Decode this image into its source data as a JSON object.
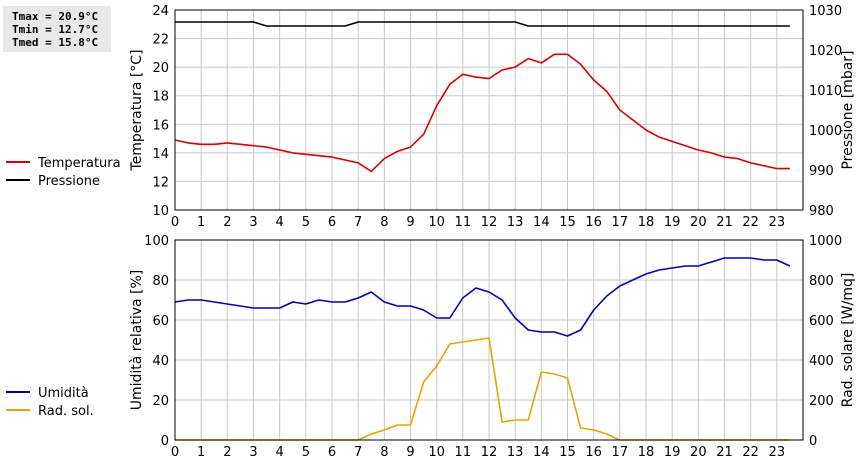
{
  "stats": {
    "tmax": "Tmax = 20.9°C",
    "tmin": "Tmin = 12.7°C",
    "tmed": "Tmed = 15.8°C"
  },
  "colors": {
    "temperature": "#dd0000",
    "pressure": "#000000",
    "humidity": "#0000bb",
    "solar": "#f0a000",
    "grid": "#c8c8c8"
  },
  "chart_data": [
    {
      "type": "line",
      "xlabel": "",
      "ylabel": "Temperatura [°C]",
      "y2label": "Pressione [mbar]",
      "xlim": [
        0,
        24
      ],
      "xticks": [
        0,
        1,
        2,
        3,
        4,
        5,
        6,
        7,
        8,
        9,
        10,
        11,
        12,
        13,
        14,
        15,
        16,
        17,
        18,
        19,
        20,
        21,
        22,
        23
      ],
      "ylim": [
        10,
        24
      ],
      "yticks": [
        10,
        12,
        14,
        16,
        18,
        20,
        22,
        24
      ],
      "y2lim": [
        980,
        1030
      ],
      "y2ticks": [
        980,
        990,
        1000,
        1010,
        1020,
        1030
      ],
      "grid": true,
      "legend": "left",
      "series": [
        {
          "name": "Temperatura",
          "axis": "left",
          "x": [
            0,
            0.5,
            1,
            1.5,
            2,
            2.5,
            3,
            3.5,
            4,
            4.5,
            5,
            5.5,
            6,
            6.5,
            7,
            7.25,
            7.5,
            8,
            8.5,
            9,
            9.5,
            10,
            10.5,
            11,
            11.5,
            12,
            12.5,
            13,
            13.5,
            14,
            14.5,
            15,
            15.5,
            16,
            16.5,
            17,
            17.5,
            18,
            18.5,
            19,
            19.5,
            20,
            20.5,
            21,
            21.5,
            22,
            22.5,
            23,
            23.5
          ],
          "values": [
            14.9,
            14.7,
            14.6,
            14.6,
            14.7,
            14.6,
            14.5,
            14.4,
            14.2,
            14.0,
            13.9,
            13.8,
            13.7,
            13.5,
            13.3,
            13.0,
            12.7,
            13.6,
            14.1,
            14.4,
            15.3,
            17.3,
            18.8,
            19.5,
            19.3,
            19.2,
            19.8,
            20.0,
            20.6,
            20.3,
            20.9,
            20.9,
            20.2,
            19.1,
            18.3,
            17.0,
            16.3,
            15.6,
            15.1,
            14.8,
            14.5,
            14.2,
            14.0,
            13.7,
            13.6,
            13.3,
            13.1,
            12.9,
            12.9
          ]
        },
        {
          "name": "Pressione",
          "axis": "right",
          "x": [
            0,
            3,
            3.5,
            6.5,
            7,
            13,
            13.5,
            23.5
          ],
          "values": [
            1027,
            1027,
            1026,
            1026,
            1027,
            1027,
            1026,
            1026
          ]
        }
      ]
    },
    {
      "type": "line",
      "xlabel": "",
      "ylabel": "Umidità relativa [%]",
      "y2label": "Rad. solare [W/mq]",
      "xlim": [
        0,
        24
      ],
      "xticks": [
        0,
        1,
        2,
        3,
        4,
        5,
        6,
        7,
        8,
        9,
        10,
        11,
        12,
        13,
        14,
        15,
        16,
        17,
        18,
        19,
        20,
        21,
        22,
        23
      ],
      "ylim": [
        0,
        100
      ],
      "yticks": [
        0,
        20,
        40,
        60,
        80,
        100
      ],
      "y2lim": [
        0,
        1000
      ],
      "y2ticks": [
        0,
        200,
        400,
        600,
        800,
        1000
      ],
      "grid": true,
      "legend": "left",
      "series": [
        {
          "name": "Umidità",
          "axis": "left",
          "x": [
            0,
            0.5,
            1,
            1.5,
            2,
            2.5,
            3,
            3.5,
            4,
            4.5,
            5,
            5.5,
            6,
            6.5,
            7,
            7.5,
            8,
            8.5,
            9,
            9.5,
            10,
            10.5,
            11,
            11.5,
            12,
            12.5,
            13,
            13.5,
            14,
            14.5,
            15,
            15.5,
            16,
            16.5,
            17,
            17.5,
            18,
            18.5,
            19,
            19.5,
            20,
            20.5,
            21,
            21.5,
            22,
            22.5,
            23,
            23.5
          ],
          "values": [
            69,
            70,
            70,
            69,
            68,
            67,
            66,
            66,
            66,
            69,
            68,
            70,
            69,
            69,
            71,
            74,
            69,
            67,
            67,
            65,
            61,
            61,
            71,
            76,
            74,
            70,
            61,
            55,
            54,
            54,
            52,
            55,
            65,
            72,
            77,
            80,
            83,
            85,
            86,
            87,
            87,
            89,
            91,
            91,
            91,
            90,
            90,
            87
          ]
        },
        {
          "name": "Rad. sol.",
          "axis": "right",
          "x": [
            0,
            7,
            7.5,
            8,
            8.5,
            9,
            9.5,
            10,
            10.5,
            11,
            11.5,
            12,
            12.5,
            13,
            13.5,
            14,
            14.5,
            15,
            15.5,
            16,
            16.5,
            17,
            23.5
          ],
          "values": [
            0,
            0,
            30,
            50,
            75,
            75,
            290,
            370,
            480,
            490,
            500,
            510,
            90,
            100,
            100,
            340,
            330,
            310,
            60,
            50,
            30,
            0,
            0
          ]
        }
      ]
    }
  ]
}
